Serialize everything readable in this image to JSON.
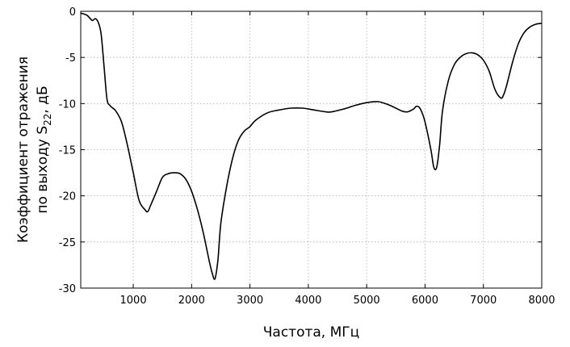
{
  "chart_data": {
    "type": "line",
    "xlabel": "Частота, МГц",
    "ylabel": {
      "line1": "Коэффициент отражения",
      "line2_prefix": "по выходу S",
      "line2_sub": "22",
      "line2_suffix": ", дБ"
    },
    "xlim": [
      100,
      8000
    ],
    "ylim": [
      -30,
      0
    ],
    "xticks": [
      1000,
      2000,
      3000,
      4000,
      5000,
      6000,
      7000,
      8000
    ],
    "yticks": [
      0,
      -5,
      -10,
      -15,
      -20,
      -25,
      -30
    ],
    "grid": true,
    "series": [
      {
        "color": "#000000",
        "x": [
          100,
          200,
          250,
          300,
          350,
          400,
          450,
          500,
          550,
          600,
          650,
          700,
          800,
          900,
          1000,
          1100,
          1200,
          1250,
          1300,
          1400,
          1500,
          1600,
          1700,
          1800,
          1900,
          2000,
          2100,
          2200,
          2300,
          2350,
          2400,
          2450,
          2500,
          2600,
          2700,
          2800,
          2900,
          3000,
          3100,
          3300,
          3500,
          3700,
          3900,
          4100,
          4300,
          4400,
          4600,
          4800,
          5000,
          5200,
          5400,
          5600,
          5700,
          5800,
          5850,
          5900,
          5950,
          6000,
          6100,
          6150,
          6200,
          6250,
          6300,
          6400,
          6500,
          6600,
          6700,
          6800,
          6900,
          7000,
          7100,
          7200,
          7300,
          7350,
          7400,
          7500,
          7600,
          7700,
          7800,
          7900,
          8000
        ],
        "y": [
          -0.2,
          -0.4,
          -0.7,
          -1.0,
          -0.8,
          -1.2,
          -2.5,
          -6.0,
          -9.5,
          -10.2,
          -10.5,
          -10.8,
          -12.0,
          -14.5,
          -17.5,
          -20.5,
          -21.5,
          -21.7,
          -21.0,
          -19.5,
          -18.0,
          -17.6,
          -17.5,
          -17.6,
          -18.2,
          -19.5,
          -21.5,
          -24.0,
          -27.0,
          -28.3,
          -29.0,
          -27.0,
          -23.0,
          -19.0,
          -16.0,
          -14.0,
          -13.0,
          -12.5,
          -11.8,
          -11.0,
          -10.7,
          -10.5,
          -10.5,
          -10.7,
          -10.9,
          -10.9,
          -10.6,
          -10.2,
          -9.9,
          -9.8,
          -10.2,
          -10.8,
          -10.9,
          -10.6,
          -10.3,
          -10.4,
          -11.0,
          -12.0,
          -15.0,
          -16.9,
          -16.9,
          -14.5,
          -10.8,
          -7.5,
          -5.8,
          -5.0,
          -4.6,
          -4.5,
          -4.7,
          -5.3,
          -6.5,
          -8.5,
          -9.4,
          -9.0,
          -8.0,
          -5.5,
          -3.5,
          -2.3,
          -1.7,
          -1.4,
          -1.3
        ]
      }
    ]
  }
}
